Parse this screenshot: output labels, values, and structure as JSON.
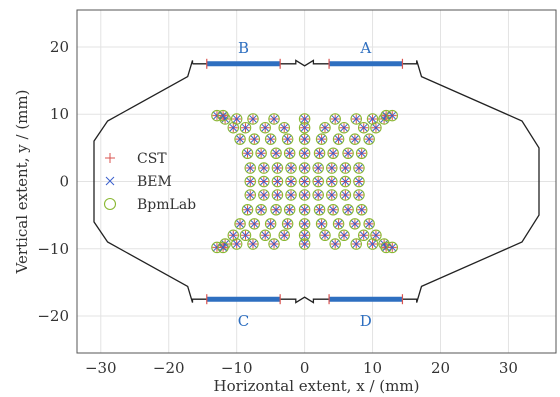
{
  "chart_data": {
    "type": "scatter",
    "xlabel": "Horizontal extent, x / (mm)",
    "ylabel": "Vertical extent, y / (mm)",
    "xlim": [
      -33.5,
      37
    ],
    "ylim": [
      -25.5,
      25.5
    ],
    "xticks": [
      -30,
      -20,
      -10,
      0,
      10,
      20,
      30
    ],
    "yticks": [
      -20,
      -10,
      0,
      10,
      20
    ],
    "xtick_labels": [
      "−30",
      "−20",
      "−10",
      "0",
      "10",
      "20",
      "30"
    ],
    "ytick_labels": [
      "−20",
      "−10",
      "0",
      "10",
      "20"
    ],
    "grid": true,
    "legend_position": "left",
    "colors": {
      "cst": "#d9534f",
      "bem": "#3a5fcd",
      "bpmlab": "#8ab833",
      "electrode": "#2e6fc0",
      "pipe": "#222222",
      "label": "#2e6fc0"
    },
    "series": [
      {
        "name": "CST",
        "marker": "plus"
      },
      {
        "name": "BEM",
        "marker": "x"
      },
      {
        "name": "BpmLab",
        "marker": "circle"
      }
    ],
    "electrodes": [
      {
        "name": "A",
        "x0": 3.6,
        "x1": 14.4,
        "y": 17.5
      },
      {
        "name": "B",
        "x0": -14.4,
        "x1": -3.6,
        "y": 17.5
      },
      {
        "name": "C",
        "x0": -14.4,
        "x1": -3.6,
        "y": -17.5
      },
      {
        "name": "D",
        "x0": 3.6,
        "x1": 14.4,
        "y": -17.5
      }
    ],
    "pipe_outline": [
      [
        -16.5,
        17.5
      ],
      [
        -16.5,
        18
      ],
      [
        -17.2,
        15.6
      ],
      [
        -29,
        9
      ],
      [
        -31,
        6
      ],
      [
        -31,
        -6
      ],
      [
        -29,
        -9
      ],
      [
        -17.2,
        -15.6
      ],
      [
        -16.5,
        -18
      ],
      [
        -16.5,
        -17.5
      ],
      [
        -1.3,
        -17.5
      ],
      [
        -1.3,
        -18
      ],
      [
        0,
        -17.2
      ],
      [
        1.3,
        -18
      ],
      [
        1.3,
        -17.5
      ],
      [
        16.5,
        -17.5
      ],
      [
        16.5,
        -18
      ],
      [
        17.2,
        -15.6
      ],
      [
        32,
        -9
      ],
      [
        34.5,
        -5
      ],
      [
        34.5,
        5
      ],
      [
        32,
        9
      ],
      [
        17.2,
        15.6
      ],
      [
        16.5,
        18
      ],
      [
        16.5,
        17.5
      ],
      [
        1.3,
        17.5
      ],
      [
        1.3,
        18
      ],
      [
        0,
        17.2
      ],
      [
        -1.3,
        18
      ],
      [
        -1.3,
        17.5
      ],
      [
        -16.5,
        17.5
      ]
    ],
    "rows": [
      {
        "y": 0,
        "xs": [
          -8,
          -6,
          -4,
          -2,
          0,
          2,
          4,
          6,
          8
        ]
      },
      {
        "y": 2,
        "xs": [
          -8,
          -6,
          -4,
          -2,
          0,
          2,
          4,
          6,
          8
        ]
      },
      {
        "y": 4.2,
        "xs": [
          -8.4,
          -6.4,
          -4.2,
          -2.2,
          0,
          2.2,
          4.2,
          6.4,
          8.4
        ]
      },
      {
        "y": 6.3,
        "xs": [
          -9.5,
          -7.4,
          -5,
          -2.5,
          0,
          2.5,
          5,
          7.4,
          9.5
        ]
      },
      {
        "y": 8,
        "xs": [
          -10.5,
          -8.7,
          -5.8,
          -3,
          0,
          3,
          5.8,
          8.7,
          10.5
        ]
      },
      {
        "y": 9.3,
        "xs": [
          -11.7,
          -10,
          -7.6,
          -4.5,
          0,
          4.5,
          7.6,
          10,
          11.7
        ]
      },
      {
        "y": 9.8,
        "xs": [
          -12.9,
          -12
        ]
      },
      {
        "y": 9.8,
        "xs": [
          12,
          12.9
        ]
      },
      {
        "y": -2,
        "xs": [
          -8,
          -6,
          -4,
          -2,
          0,
          2,
          4,
          6,
          8
        ]
      },
      {
        "y": -4.2,
        "xs": [
          -8.4,
          -6.4,
          -4.2,
          -2.2,
          0,
          2.2,
          4.2,
          6.4,
          8.4
        ]
      },
      {
        "y": -6.3,
        "xs": [
          -9.5,
          -7.4,
          -5,
          -2.5,
          0,
          2.5,
          5,
          7.4,
          9.5
        ]
      },
      {
        "y": -8,
        "xs": [
          -10.5,
          -8.7,
          -5.8,
          -3,
          0,
          3,
          5.8,
          8.7,
          10.5
        ]
      },
      {
        "y": -9.3,
        "xs": [
          -11.7,
          -10,
          -7.6,
          -4.5,
          0,
          4.5,
          7.6,
          10,
          11.7
        ]
      },
      {
        "y": -9.8,
        "xs": [
          -12.9,
          -12
        ]
      },
      {
        "y": -9.8,
        "xs": [
          12,
          12.9
        ]
      }
    ]
  }
}
